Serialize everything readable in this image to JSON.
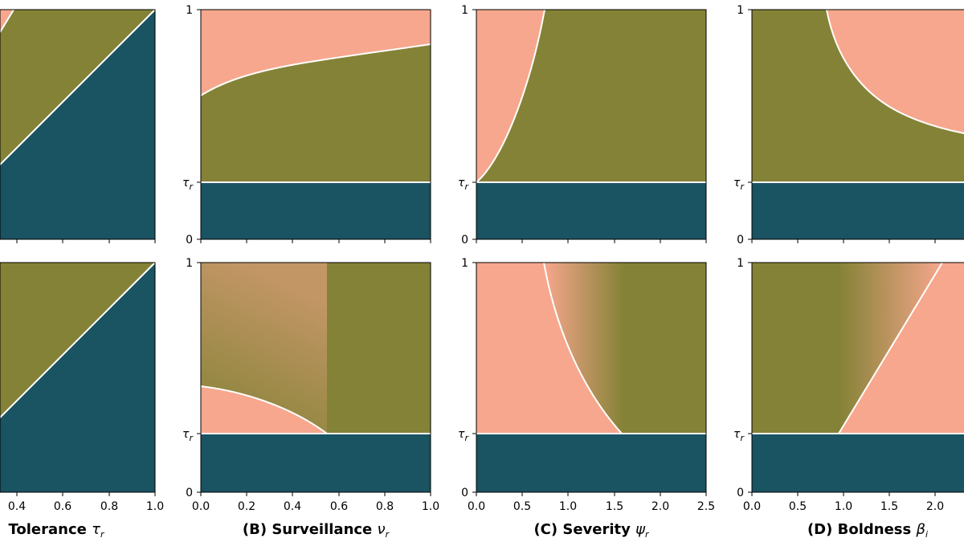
{
  "colors": {
    "salmon": "#f7a78d",
    "olive": "#848236",
    "teal": "#1a5362",
    "line": "#ffffff"
  },
  "chart_data": [
    {
      "type": "area",
      "panel": "A",
      "row": "top",
      "xlabel_prefix": "Tolerance ",
      "xlabel_symbol": "τ",
      "xlabel_sub": "r",
      "xlim": [
        0,
        1
      ],
      "ylim": [
        0,
        1
      ],
      "x_ticks": [
        "0.4",
        "0.6",
        "0.8",
        "1.0"
      ]
    },
    {
      "type": "area",
      "panel": "B",
      "row": "top",
      "xlabel_prefix": "(B) Surveillance ",
      "xlabel_symbol": "ν",
      "xlabel_sub": "r",
      "xlim": [
        0,
        1
      ],
      "ylim": [
        0,
        1
      ],
      "x_ticks": [
        "0.0",
        "0.2",
        "0.4",
        "0.6",
        "0.8",
        "1.0"
      ],
      "y_ticks": [
        "0",
        "1"
      ],
      "y_tau_label": "τ",
      "y_tau_sub": "r",
      "tau": 0.25,
      "boundary": {
        "x": [
          0,
          0.1,
          0.2,
          0.3,
          0.4,
          0.5,
          0.6,
          0.7,
          0.8,
          0.9,
          1.0
        ],
        "y": [
          0.63,
          0.7,
          0.725,
          0.745,
          0.762,
          0.776,
          0.789,
          0.8,
          0.81,
          0.818,
          0.85
        ]
      }
    },
    {
      "type": "area",
      "panel": "C",
      "row": "top",
      "xlabel_prefix": "(C) Severity ",
      "xlabel_symbol": "ψ",
      "xlabel_sub": "r",
      "xlim": [
        0,
        2.5
      ],
      "ylim": [
        0,
        1
      ],
      "x_ticks": [
        "0.0",
        "0.5",
        "1.0",
        "1.5",
        "2.0",
        "2.5"
      ],
      "y_ticks": [
        "0",
        "1"
      ],
      "y_tau_label": "τ",
      "y_tau_sub": "r",
      "tau": 0.25,
      "boundary": {
        "x": [
          0,
          0.2,
          0.4,
          0.55,
          0.65,
          0.74
        ],
        "y": [
          0.25,
          0.38,
          0.56,
          0.74,
          0.88,
          1.0
        ]
      }
    },
    {
      "type": "area",
      "panel": "D",
      "row": "top",
      "xlabel_prefix": "(D) Boldness ",
      "xlabel_symbol": "β",
      "xlabel_sub": "i",
      "xlim": [
        0,
        2.3
      ],
      "ylim": [
        0,
        1
      ],
      "x_ticks": [
        "0.0",
        "0.5",
        "1.0",
        "1.5",
        "2.0"
      ],
      "y_ticks": [
        "0",
        "1"
      ],
      "y_tau_label": "τ",
      "y_tau_sub": "r",
      "tau": 0.25,
      "boundary": {
        "x": [
          0.8,
          0.85,
          0.95,
          1.1,
          1.3,
          1.6,
          2.0,
          2.3
        ],
        "y": [
          1.0,
          0.9,
          0.78,
          0.66,
          0.56,
          0.48,
          0.43,
          0.41
        ]
      }
    },
    {
      "type": "area",
      "panel": "B",
      "row": "bottom",
      "xlim": [
        0,
        1
      ],
      "ylim": [
        0,
        1
      ],
      "tau": 0.25,
      "boundary": {
        "x": [
          0,
          0.1,
          0.2,
          0.3,
          0.4,
          0.5,
          0.55
        ],
        "y": [
          0.46,
          0.45,
          0.43,
          0.4,
          0.36,
          0.3,
          0.25
        ]
      },
      "gradient_end_x": 0.55
    },
    {
      "type": "area",
      "panel": "C",
      "row": "bottom",
      "xlim": [
        0,
        2.5
      ],
      "ylim": [
        0,
        1
      ],
      "tau": 0.25,
      "boundary": {
        "x": [
          0.73,
          0.85,
          1.0,
          1.2,
          1.4,
          1.58
        ],
        "y": [
          1.0,
          0.82,
          0.63,
          0.45,
          0.33,
          0.25
        ]
      },
      "gradient_end_x": 1.58
    },
    {
      "type": "area",
      "panel": "D",
      "row": "bottom",
      "xlim": [
        0,
        2.3
      ],
      "ylim": [
        0,
        1
      ],
      "tau": 0.25,
      "boundary": {
        "x": [
          0.95,
          2.05
        ],
        "y": [
          0.25,
          1.0
        ]
      },
      "gradient_start_x": 0.95
    }
  ]
}
